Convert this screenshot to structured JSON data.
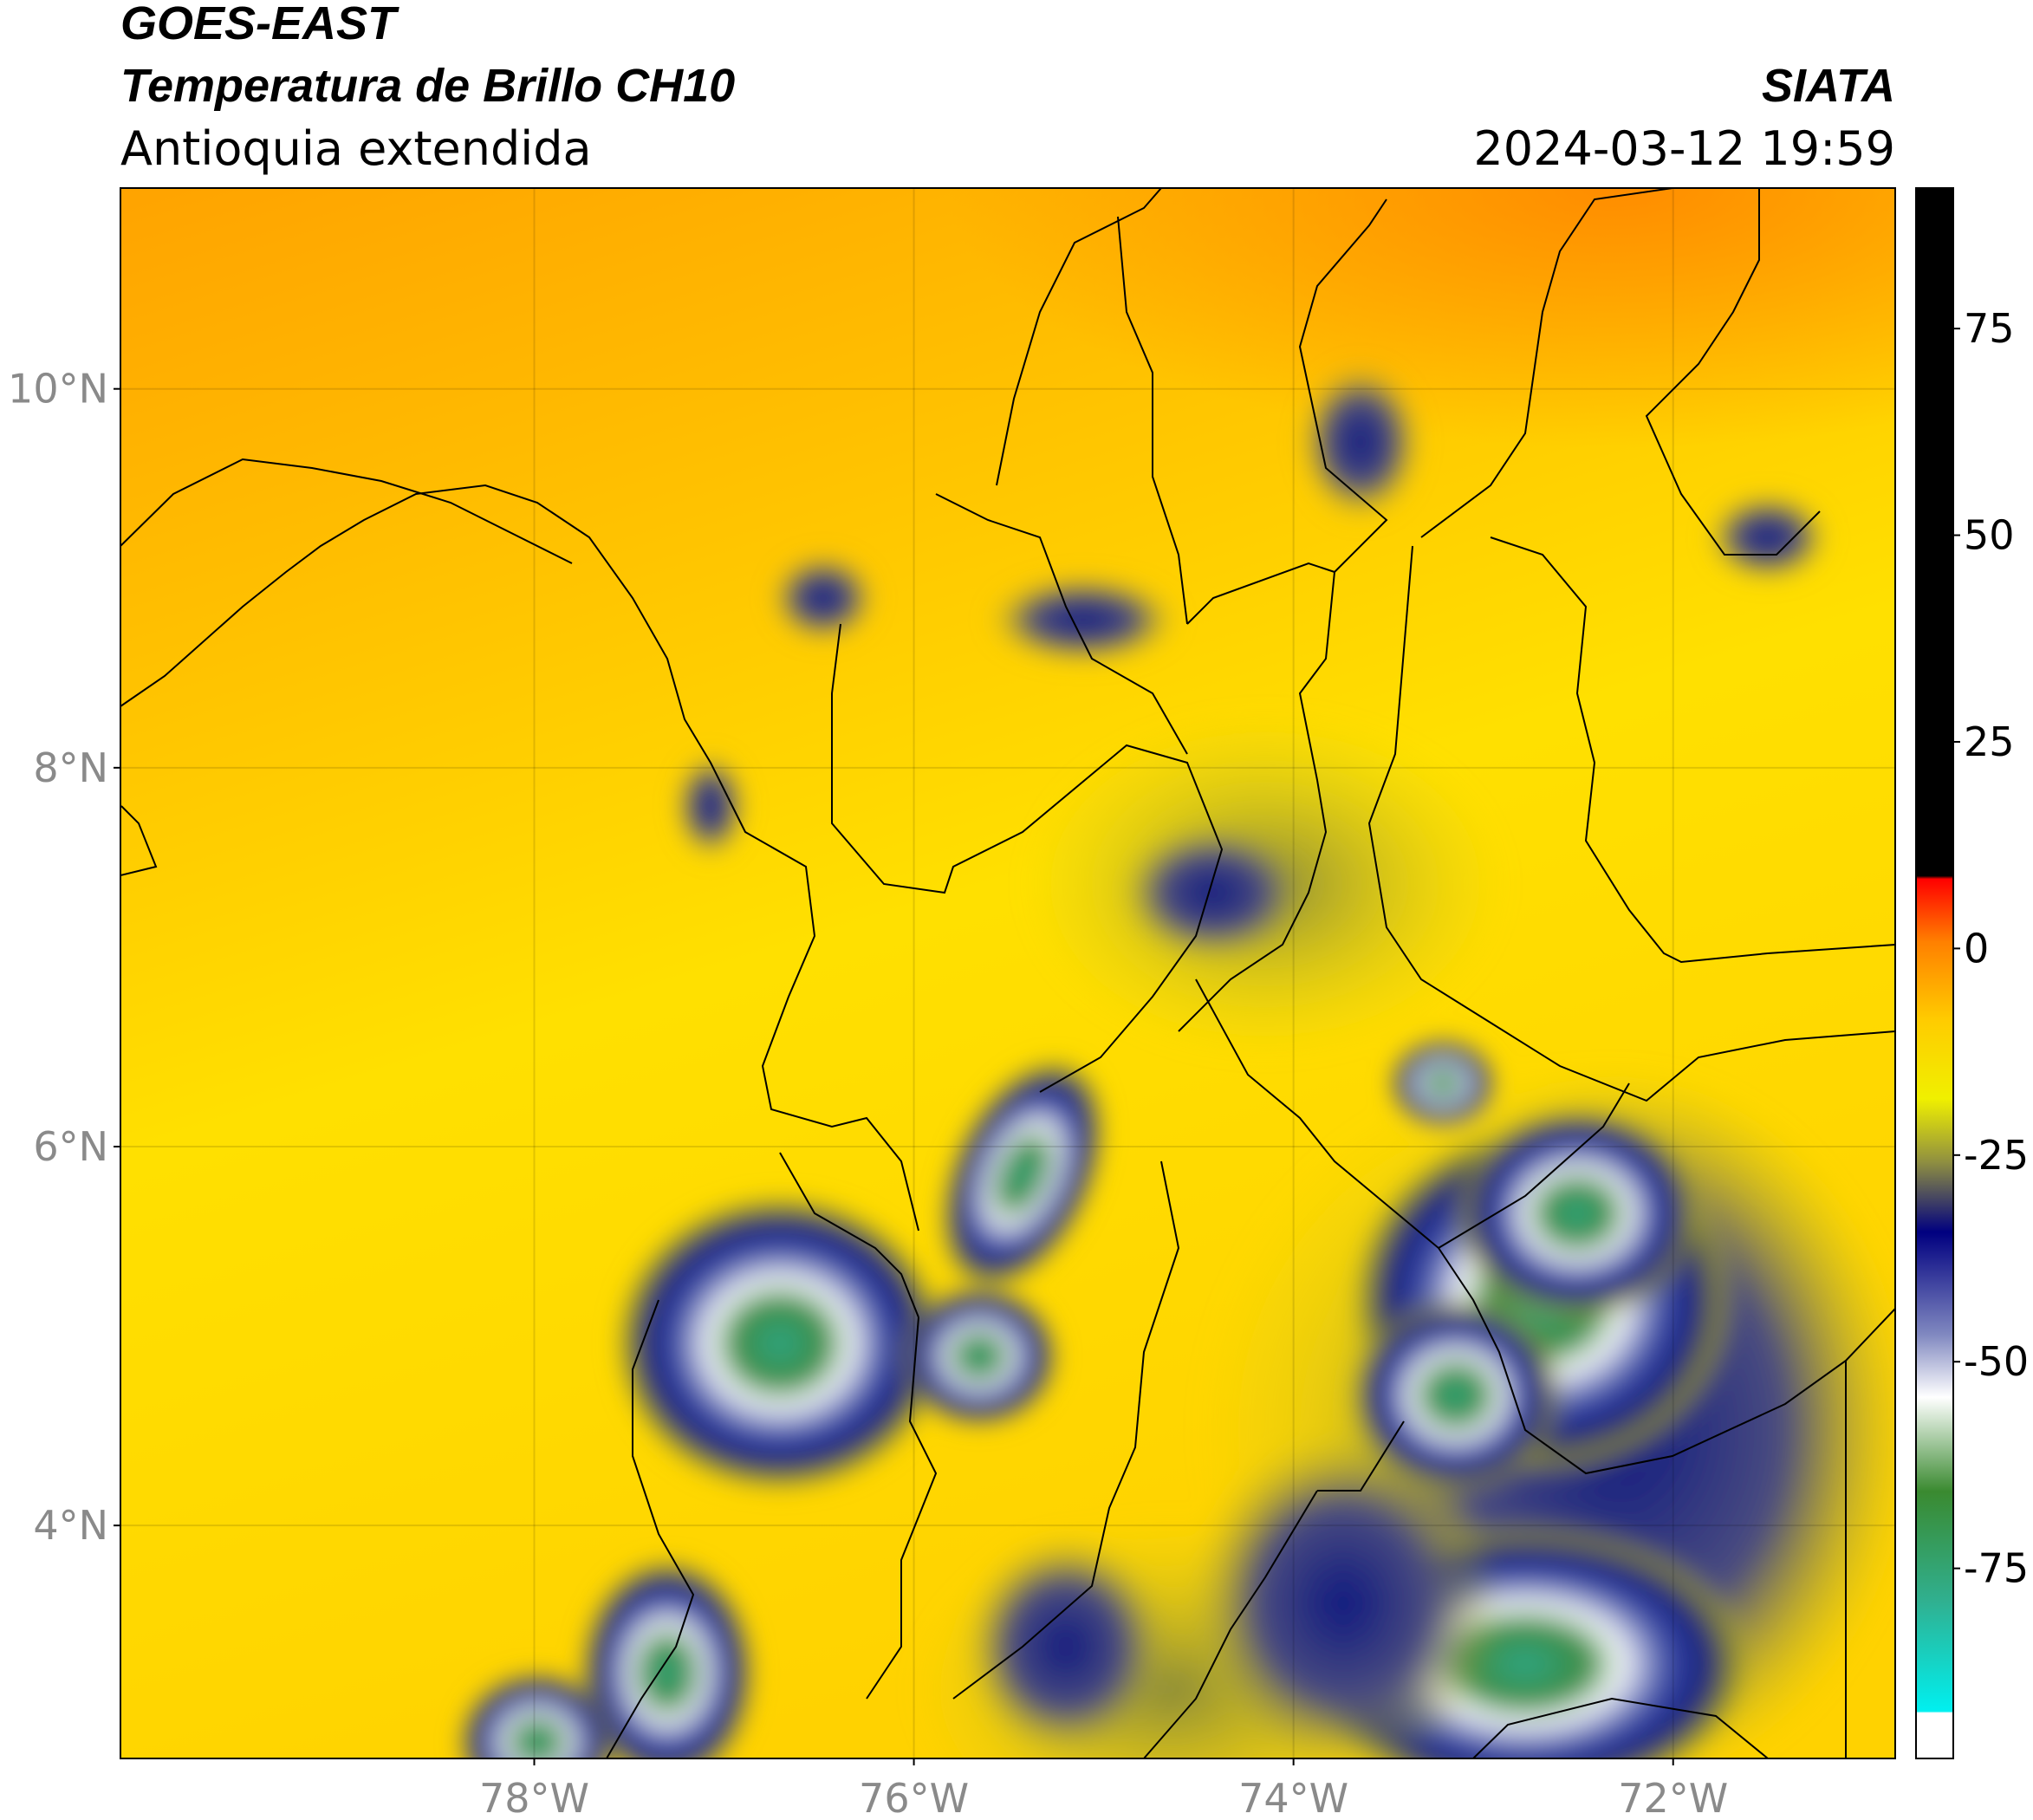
{
  "header": {
    "title1": "GOES-EAST",
    "title2": "Temperatura de Brillo CH10",
    "subtitle": "Antioquia extendida",
    "source": "SIATA",
    "datetime": "2024-03-12 19:59"
  },
  "map": {
    "lonlim": [
      -80.18,
      -70.83
    ],
    "latlim": [
      2.77,
      11.06
    ],
    "lon_ticks": [
      {
        "value": -78,
        "label": "78°W"
      },
      {
        "value": -76,
        "label": "76°W"
      },
      {
        "value": -74,
        "label": "74°W"
      },
      {
        "value": -72,
        "label": "72°W"
      }
    ],
    "lat_ticks": [
      {
        "value": 4,
        "label": "4°N"
      },
      {
        "value": 6,
        "label": "6°N"
      },
      {
        "value": 8,
        "label": "8°N"
      },
      {
        "value": 10,
        "label": "10°N"
      }
    ]
  },
  "colorbar": {
    "lim": [
      -98,
      92
    ],
    "ticks": [
      75,
      50,
      25,
      0,
      -25,
      -50,
      -75
    ]
  }
}
